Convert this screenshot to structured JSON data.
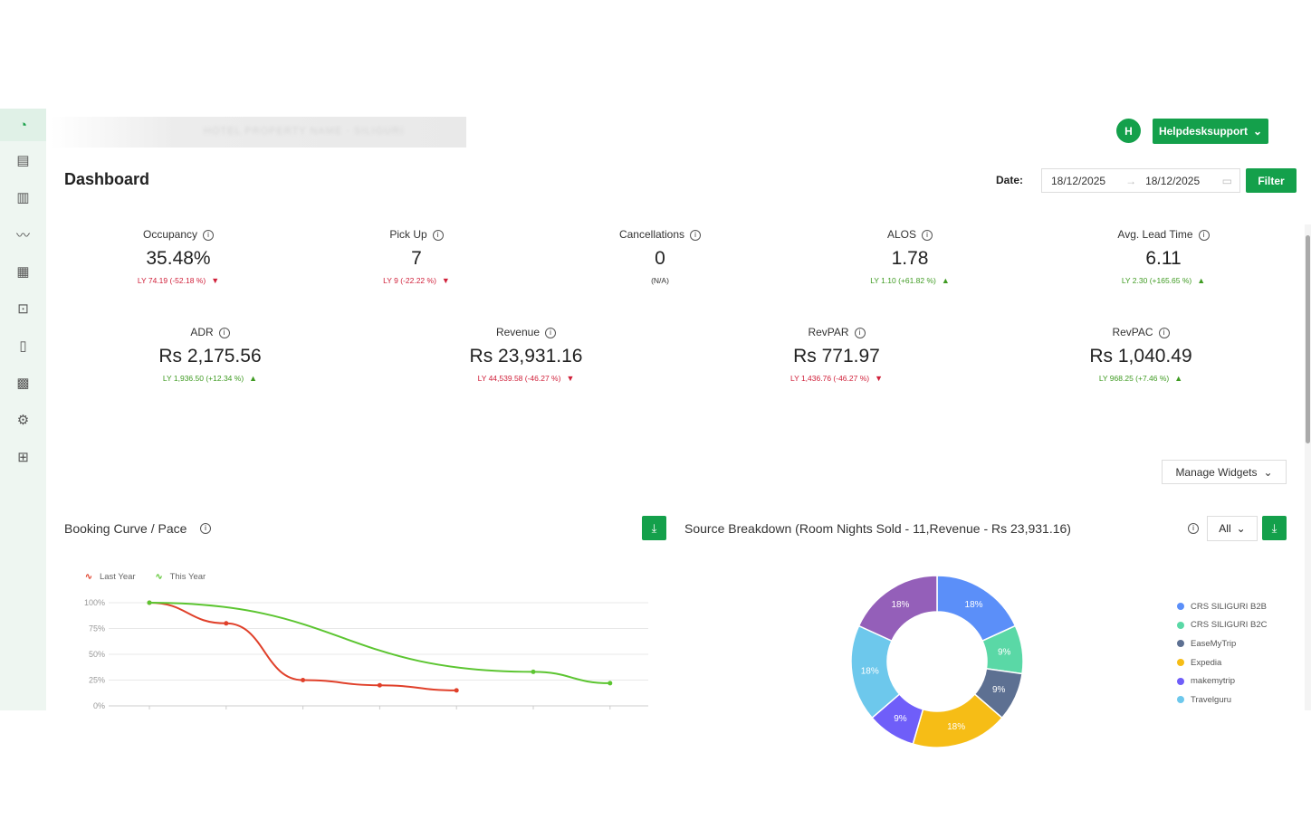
{
  "header": {
    "blurred_property": "HOTEL PROPERTY NAME · SILIGURI",
    "avatar_initial": "H",
    "user": "Helpdesksupport",
    "page_title": "Dashboard"
  },
  "date_filter": {
    "label": "Date:",
    "from": "18/12/2025",
    "to": "18/12/2025",
    "arrow": "→",
    "filter_label": "Filter"
  },
  "kpis": [
    {
      "label": "Occupancy",
      "value": "35.48%",
      "ly": "LY 74.19 (-52.18 %)",
      "trend": "down"
    },
    {
      "label": "Pick Up",
      "value": "7",
      "ly": "LY 9 (-22.22 %)",
      "trend": "down"
    },
    {
      "label": "Cancellations",
      "value": "0",
      "ly": "(N/A)",
      "trend": "na"
    },
    {
      "label": "ALOS",
      "value": "1.78",
      "ly": "LY 1.10 (+61.82 %)",
      "trend": "up"
    },
    {
      "label": "Avg. Lead Time",
      "value": "6.11",
      "ly": "LY 2.30 (+165.65 %)",
      "trend": "up"
    },
    {
      "label": "ADR",
      "value": "Rs 2,175.56",
      "ly": "LY 1,936.50 (+12.34 %)",
      "trend": "up"
    },
    {
      "label": "Revenue",
      "value": "Rs 23,931.16",
      "ly": "LY 44,539.58 (-46.27 %)",
      "trend": "down"
    },
    {
      "label": "RevPAR",
      "value": "Rs 771.97",
      "ly": "LY 1,436.76 (-46.27 %)",
      "trend": "down"
    },
    {
      "label": "RevPAC",
      "value": "Rs 1,040.49",
      "ly": "LY 968.25 (+7.46 %)",
      "trend": "up"
    }
  ],
  "manage_widgets": "Manage Widgets",
  "booking_curve": {
    "title": "Booking Curve / Pace"
  },
  "source_breakdown": {
    "title": "Source Breakdown (Room Nights Sold - 11,Revenue - Rs 23,931.16)",
    "filter": "All"
  },
  "colors": {
    "accent": "#14a04b",
    "up": "#3f9b22",
    "down": "#d0203a",
    "last_year": "#e0402a",
    "this_year": "#5cc531"
  },
  "chart_data": [
    {
      "type": "line",
      "title": "Booking Curve / Pace",
      "ylim": [
        0,
        100
      ],
      "yticks": [
        "0%",
        "25%",
        "50%",
        "75%",
        "100%"
      ],
      "series": [
        {
          "name": "Last Year",
          "values": [
            100,
            80,
            25,
            20,
            15,
            null,
            null
          ]
        },
        {
          "name": "This Year",
          "values": [
            100,
            null,
            null,
            null,
            null,
            33,
            22
          ]
        }
      ]
    },
    {
      "type": "pie",
      "title": "Source Breakdown",
      "slices": [
        {
          "name": "CRS SILIGURI B2B",
          "value": 18,
          "color": "#5b8ff9"
        },
        {
          "name": "CRS SILIGURI B2C",
          "value": 9,
          "color": "#5ad8a6"
        },
        {
          "name": "EaseMyTrip",
          "value": 9,
          "color": "#5d7092"
        },
        {
          "name": "Expedia",
          "value": 18,
          "color": "#f6bd16"
        },
        {
          "name": "makemytrip",
          "value": 9,
          "color": "#6f5ef9"
        },
        {
          "name": "Travelguru",
          "value": 18,
          "color": "#6dc8ec"
        },
        {
          "name": "",
          "value": 18,
          "color": "#945fb9"
        }
      ]
    }
  ]
}
